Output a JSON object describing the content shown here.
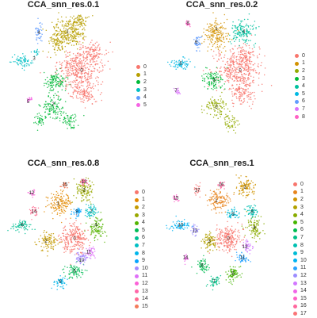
{
  "chart_data": [
    {
      "type": "scatter",
      "title": "CCA_snn_res.0.1",
      "legend_position": "right",
      "legend": [
        "0",
        "1",
        "2",
        "3",
        "4",
        "5"
      ],
      "colors": [
        "#F8766D",
        "#B79F00",
        "#00BA38",
        "#00BFC4",
        "#619CFF",
        "#F564E3"
      ],
      "clusters": [
        {
          "name": "0",
          "label": "0",
          "x": 0.62,
          "y": 0.43,
          "blobs": [
            [
              0.6,
              0.42,
              0.17,
              0.13,
              400
            ],
            [
              0.64,
              0.6,
              0.1,
              0.08,
              120
            ],
            [
              0.7,
              0.3,
              0.1,
              0.07,
              100
            ]
          ]
        },
        {
          "name": "1",
          "label": "1",
          "x": 0.5,
          "y": 0.14,
          "blobs": [
            [
              0.52,
              0.14,
              0.13,
              0.1,
              260
            ],
            [
              0.42,
              0.22,
              0.07,
              0.07,
              80
            ],
            [
              0.6,
              0.06,
              0.06,
              0.04,
              60
            ]
          ]
        },
        {
          "name": "2",
          "label": "2",
          "x": 0.38,
          "y": 0.68,
          "blobs": [
            [
              0.4,
              0.52,
              0.09,
              0.07,
              120
            ],
            [
              0.38,
              0.7,
              0.09,
              0.07,
              110
            ],
            [
              0.52,
              0.8,
              0.06,
              0.05,
              60
            ],
            [
              0.28,
              0.8,
              0.05,
              0.04,
              40
            ]
          ]
        },
        {
          "name": "3",
          "label": "3",
          "x": 0.22,
          "y": 0.34,
          "blobs": [
            [
              0.12,
              0.36,
              0.08,
              0.04,
              70
            ],
            [
              0.24,
              0.3,
              0.03,
              0.02,
              15
            ]
          ]
        },
        {
          "name": "4",
          "label": "4",
          "x": 0.26,
          "y": 0.15,
          "blobs": [
            [
              0.26,
              0.15,
              0.03,
              0.06,
              40
            ]
          ]
        },
        {
          "name": "5",
          "label": "5",
          "x": 0.17,
          "y": 0.66,
          "blobs": [
            [
              0.18,
              0.64,
              0.025,
              0.025,
              20
            ]
          ]
        }
      ]
    },
    {
      "type": "scatter",
      "title": "CCA_snn_res.0.2",
      "legend_position": "right",
      "legend": [
        "0",
        "1",
        "2",
        "3",
        "4",
        "5",
        "6",
        "7",
        "8"
      ],
      "colors": [
        "#F8766D",
        "#D39200",
        "#93AA00",
        "#00BA38",
        "#00C19F",
        "#00B9E3",
        "#619CFF",
        "#DB72FB",
        "#FF61C3"
      ],
      "clusters": [
        {
          "name": "0",
          "label": "0",
          "x": 0.62,
          "y": 0.43,
          "blobs": [
            [
              0.6,
              0.42,
              0.17,
              0.13,
              400
            ],
            [
              0.64,
              0.6,
              0.1,
              0.08,
              110
            ],
            [
              0.66,
              0.3,
              0.08,
              0.06,
              60
            ]
          ]
        },
        {
          "name": "1",
          "label": "1",
          "x": 0.42,
          "y": 0.12,
          "blobs": [
            [
              0.42,
              0.16,
              0.09,
              0.09,
              180
            ]
          ]
        },
        {
          "name": "2",
          "label": "2",
          "x": 0.42,
          "y": 0.7,
          "blobs": [
            [
              0.42,
              0.7,
              0.09,
              0.07,
              100
            ],
            [
              0.54,
              0.82,
              0.06,
              0.05,
              50
            ]
          ]
        },
        {
          "name": "3",
          "label": "3",
          "x": 0.4,
          "y": 0.5,
          "blobs": [
            [
              0.4,
              0.5,
              0.08,
              0.07,
              110
            ]
          ]
        },
        {
          "name": "4",
          "label": "4",
          "x": 0.65,
          "y": 0.14,
          "blobs": [
            [
              0.64,
              0.14,
              0.09,
              0.08,
              150
            ]
          ]
        },
        {
          "name": "5",
          "label": "5",
          "x": 0.12,
          "y": 0.38,
          "blobs": [
            [
              0.12,
              0.38,
              0.08,
              0.04,
              70
            ]
          ]
        },
        {
          "name": "6",
          "label": "6",
          "x": 0.25,
          "y": 0.22,
          "blobs": [
            [
              0.26,
              0.22,
              0.03,
              0.06,
              40
            ]
          ]
        },
        {
          "name": "7",
          "label": "7",
          "x": 0.08,
          "y": 0.58,
          "blobs": [
            [
              0.09,
              0.58,
              0.025,
              0.025,
              20
            ]
          ]
        },
        {
          "name": "8",
          "label": "8",
          "x": 0.18,
          "y": 0.08,
          "blobs": [
            [
              0.18,
              0.08,
              0.025,
              0.025,
              20
            ]
          ]
        }
      ]
    },
    {
      "type": "scatter",
      "title": "CCA_snn_res.0.8",
      "legend_position": "right",
      "legend": [
        "0",
        "1",
        "2",
        "3",
        "4",
        "5",
        "6",
        "7",
        "8",
        "9",
        "10",
        "11",
        "12",
        "13",
        "14",
        "15"
      ],
      "colors": [
        "#F8766D",
        "#E38900",
        "#C49A00",
        "#99A800",
        "#53B400",
        "#00BC56",
        "#00C094",
        "#00BFC4",
        "#00B6EB",
        "#06A4FF",
        "#A58AFF",
        "#DF70F8",
        "#FB61D7",
        "#FF66A8",
        "#FF6C91",
        "#F47B5B"
      ],
      "clusters": [
        {
          "name": "0",
          "label": "0",
          "x": 0.56,
          "y": 0.5,
          "blobs": [
            [
              0.56,
              0.5,
              0.11,
              0.1,
              250
            ]
          ]
        },
        {
          "name": "1",
          "label": "1",
          "x": 0.42,
          "y": 0.24,
          "blobs": [
            [
              0.44,
              0.24,
              0.09,
              0.08,
              150
            ]
          ]
        },
        {
          "name": "2",
          "label": "2",
          "x": 0.32,
          "y": 0.52,
          "blobs": [
            [
              0.34,
              0.52,
              0.07,
              0.06,
              100
            ]
          ]
        },
        {
          "name": "3",
          "label": "3",
          "x": 0.64,
          "y": 0.14,
          "blobs": [
            [
              0.64,
              0.14,
              0.07,
              0.08,
              120
            ]
          ]
        },
        {
          "name": "4",
          "label": "4",
          "x": 0.74,
          "y": 0.4,
          "blobs": [
            [
              0.74,
              0.42,
              0.06,
              0.07,
              100
            ]
          ]
        },
        {
          "name": "5",
          "label": "5",
          "x": 0.56,
          "y": 0.74,
          "blobs": [
            [
              0.56,
              0.74,
              0.07,
              0.05,
              80
            ]
          ]
        },
        {
          "name": "6",
          "label": "6",
          "x": 0.12,
          "y": 0.4,
          "blobs": [
            [
              0.12,
              0.4,
              0.08,
              0.04,
              70
            ]
          ]
        },
        {
          "name": "7",
          "label": "7",
          "x": 0.7,
          "y": 0.3,
          "blobs": [
            [
              0.7,
              0.3,
              0.05,
              0.04,
              60
            ]
          ]
        },
        {
          "name": "8",
          "label": "8",
          "x": 0.44,
          "y": 0.82,
          "blobs": [
            [
              0.44,
              0.82,
              0.05,
              0.04,
              50
            ]
          ]
        },
        {
          "name": "9",
          "label": "9",
          "x": 0.58,
          "y": 0.3,
          "blobs": [
            [
              0.58,
              0.3,
              0.05,
              0.04,
              50
            ]
          ]
        },
        {
          "name": "10",
          "label": "10",
          "x": 0.62,
          "y": 0.66,
          "blobs": [
            [
              0.62,
              0.64,
              0.05,
              0.04,
              60
            ]
          ]
        },
        {
          "name": "11",
          "label": "11",
          "x": 0.68,
          "y": 0.6,
          "blobs": [
            [
              0.7,
              0.6,
              0.04,
              0.04,
              40
            ]
          ]
        },
        {
          "name": "12",
          "label": "12",
          "x": 0.2,
          "y": 0.16,
          "blobs": [
            [
              0.2,
              0.16,
              0.025,
              0.025,
              20
            ]
          ]
        },
        {
          "name": "13",
          "label": "13",
          "x": 0.64,
          "y": 0.08,
          "blobs": [
            [
              0.64,
              0.08,
              0.03,
              0.025,
              30
            ]
          ]
        },
        {
          "name": "14",
          "label": "14",
          "x": 0.22,
          "y": 0.3,
          "blobs": [
            [
              0.22,
              0.3,
              0.03,
              0.05,
              30
            ]
          ]
        },
        {
          "name": "15",
          "label": "15",
          "x": 0.48,
          "y": 0.1,
          "blobs": [
            [
              0.48,
              0.1,
              0.03,
              0.03,
              25
            ]
          ]
        }
      ]
    },
    {
      "type": "scatter",
      "title": "CCA_snn_res.1",
      "legend_position": "right",
      "legend": [
        "0",
        "1",
        "2",
        "3",
        "4",
        "5",
        "6",
        "7",
        "8",
        "9",
        "10",
        "11",
        "12",
        "13",
        "14",
        "15",
        "16",
        "17"
      ],
      "colors": [
        "#F8766D",
        "#E7851E",
        "#D09400",
        "#B2A100",
        "#89AC00",
        "#45B500",
        "#00BC51",
        "#00C087",
        "#00C0B2",
        "#00BCD6",
        "#00B3F2",
        "#29A3FF",
        "#9C8DFF",
        "#D277FF",
        "#F166E8",
        "#FF61C7",
        "#FF689E",
        "#FA7476"
      ],
      "clusters": [
        {
          "name": "0",
          "label": "0",
          "x": 0.52,
          "y": 0.5,
          "blobs": [
            [
              0.52,
              0.5,
              0.1,
              0.09,
              220
            ]
          ]
        },
        {
          "name": "1",
          "label": "1",
          "x": 0.42,
          "y": 0.22,
          "blobs": [
            [
              0.44,
              0.22,
              0.09,
              0.08,
              140
            ]
          ]
        },
        {
          "name": "2",
          "label": "2",
          "x": 0.66,
          "y": 0.12,
          "blobs": [
            [
              0.66,
              0.12,
              0.07,
              0.07,
              110
            ]
          ]
        },
        {
          "name": "3",
          "label": "3",
          "x": 0.36,
          "y": 0.52,
          "blobs": [
            [
              0.36,
              0.52,
              0.06,
              0.06,
              90
            ]
          ]
        },
        {
          "name": "4",
          "label": "4",
          "x": 0.74,
          "y": 0.42,
          "blobs": [
            [
              0.74,
              0.42,
              0.06,
              0.07,
              100
            ]
          ]
        },
        {
          "name": "5",
          "label": "5",
          "x": 0.56,
          "y": 0.76,
          "blobs": [
            [
              0.56,
              0.76,
              0.06,
              0.05,
              80
            ]
          ]
        },
        {
          "name": "6",
          "label": "6",
          "x": 0.3,
          "y": 0.7,
          "blobs": [
            [
              0.3,
              0.7,
              0.05,
              0.05,
              60
            ]
          ]
        },
        {
          "name": "7",
          "label": "7",
          "x": 0.4,
          "y": 0.82,
          "blobs": [
            [
              0.4,
              0.82,
              0.05,
              0.04,
              50
            ]
          ]
        },
        {
          "name": "8",
          "label": "8",
          "x": 0.72,
          "y": 0.3,
          "blobs": [
            [
              0.72,
              0.3,
              0.05,
              0.04,
              60
            ]
          ]
        },
        {
          "name": "9",
          "label": "9",
          "x": 0.56,
          "y": 0.32,
          "blobs": [
            [
              0.56,
              0.32,
              0.05,
              0.04,
              50
            ]
          ]
        },
        {
          "name": "10",
          "label": "10",
          "x": 0.12,
          "y": 0.4,
          "blobs": [
            [
              0.12,
              0.4,
              0.08,
              0.04,
              70
            ]
          ]
        },
        {
          "name": "11",
          "label": "11",
          "x": 0.64,
          "y": 0.64,
          "blobs": [
            [
              0.64,
              0.64,
              0.05,
              0.04,
              50
            ]
          ]
        },
        {
          "name": "12",
          "label": "12",
          "x": 0.24,
          "y": 0.44,
          "blobs": [
            [
              0.24,
              0.44,
              0.03,
              0.04,
              30
            ]
          ]
        },
        {
          "name": "13",
          "label": "13",
          "x": 0.66,
          "y": 0.56,
          "blobs": [
            [
              0.68,
              0.56,
              0.04,
              0.04,
              40
            ]
          ]
        },
        {
          "name": "14",
          "label": "14",
          "x": 0.16,
          "y": 0.64,
          "blobs": [
            [
              0.16,
              0.64,
              0.025,
              0.025,
              20
            ]
          ]
        },
        {
          "name": "15",
          "label": "15",
          "x": 0.08,
          "y": 0.2,
          "blobs": [
            [
              0.08,
              0.2,
              0.025,
              0.025,
              20
            ]
          ]
        },
        {
          "name": "16",
          "label": "16",
          "x": 0.46,
          "y": 0.1,
          "blobs": [
            [
              0.46,
              0.1,
              0.03,
              0.03,
              25
            ]
          ]
        },
        {
          "name": "17",
          "label": "17",
          "x": 0.26,
          "y": 0.14,
          "blobs": [
            [
              0.26,
              0.14,
              0.025,
              0.04,
              25
            ]
          ]
        }
      ]
    }
  ]
}
